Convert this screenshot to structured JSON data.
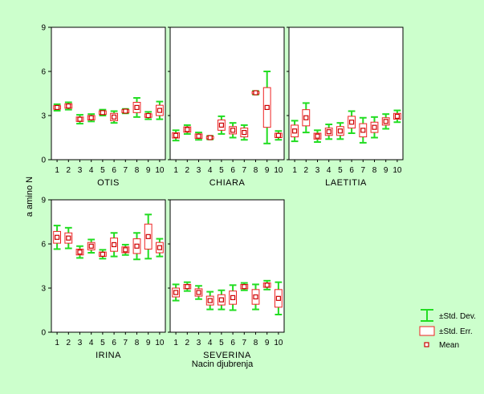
{
  "chart_data": {
    "type": "box",
    "xlabel": "Nacin djubrenja",
    "ylabel": "a amino N",
    "ylim": [
      0,
      9
    ],
    "yticks": [
      0,
      3,
      6,
      9
    ],
    "categories": [
      "1",
      "2",
      "3",
      "4",
      "5",
      "6",
      "7",
      "8",
      "9",
      "10"
    ],
    "grid": false,
    "legend_position": "bottom-right",
    "legend": [
      {
        "label": "±Std. Dev.",
        "kind": "whisker"
      },
      {
        "label": "±Std. Err.",
        "kind": "box"
      },
      {
        "label": "Mean",
        "kind": "point"
      }
    ],
    "colors": {
      "background": "#ccffcc",
      "whisker": "#22dd22",
      "box": "#ee2222",
      "mean": "#cc0000"
    },
    "panels": [
      {
        "title": "OTIS",
        "mean": [
          3.55,
          3.65,
          2.75,
          2.85,
          3.2,
          2.9,
          3.3,
          3.55,
          3.0,
          3.35
        ],
        "se": [
          0.12,
          0.15,
          0.15,
          0.15,
          0.12,
          0.25,
          0.1,
          0.35,
          0.12,
          0.35
        ],
        "sd": [
          0.22,
          0.25,
          0.3,
          0.25,
          0.2,
          0.4,
          0.15,
          0.65,
          0.25,
          0.6
        ]
      },
      {
        "title": "CHIARA",
        "mean": [
          1.65,
          2.05,
          1.6,
          1.5,
          2.35,
          2.0,
          1.85,
          4.55,
          3.55,
          1.65
        ],
        "se": [
          0.18,
          0.18,
          0.15,
          0.08,
          0.35,
          0.25,
          0.3,
          0.08,
          1.35,
          0.15
        ],
        "sd": [
          0.35,
          0.3,
          0.25,
          0.12,
          0.6,
          0.5,
          0.5,
          0.12,
          2.45,
          0.3
        ]
      },
      {
        "title": "LAETITIA",
        "mean": [
          1.95,
          2.85,
          1.6,
          1.9,
          1.95,
          2.55,
          2.0,
          2.2,
          2.6,
          2.95
        ],
        "se": [
          0.4,
          0.55,
          0.2,
          0.25,
          0.3,
          0.4,
          0.45,
          0.35,
          0.25,
          0.2
        ],
        "sd": [
          0.7,
          1.0,
          0.4,
          0.5,
          0.55,
          0.75,
          0.85,
          0.7,
          0.5,
          0.4
        ]
      },
      {
        "title": "IRINA",
        "mean": [
          6.45,
          6.4,
          5.45,
          5.85,
          5.3,
          5.95,
          5.6,
          5.85,
          6.5,
          5.75
        ],
        "se": [
          0.4,
          0.35,
          0.2,
          0.25,
          0.15,
          0.45,
          0.2,
          0.5,
          0.85,
          0.35
        ],
        "sd": [
          0.8,
          0.7,
          0.4,
          0.45,
          0.3,
          0.8,
          0.35,
          0.9,
          1.5,
          0.6
        ]
      },
      {
        "title": "SEVERINA",
        "mean": [
          2.7,
          3.1,
          2.7,
          2.15,
          2.2,
          2.35,
          3.1,
          2.4,
          3.2,
          2.3
        ],
        "se": [
          0.3,
          0.15,
          0.25,
          0.3,
          0.35,
          0.45,
          0.15,
          0.5,
          0.15,
          0.6
        ],
        "sd": [
          0.55,
          0.3,
          0.45,
          0.6,
          0.65,
          0.85,
          0.25,
          0.85,
          0.3,
          1.1
        ]
      }
    ]
  }
}
